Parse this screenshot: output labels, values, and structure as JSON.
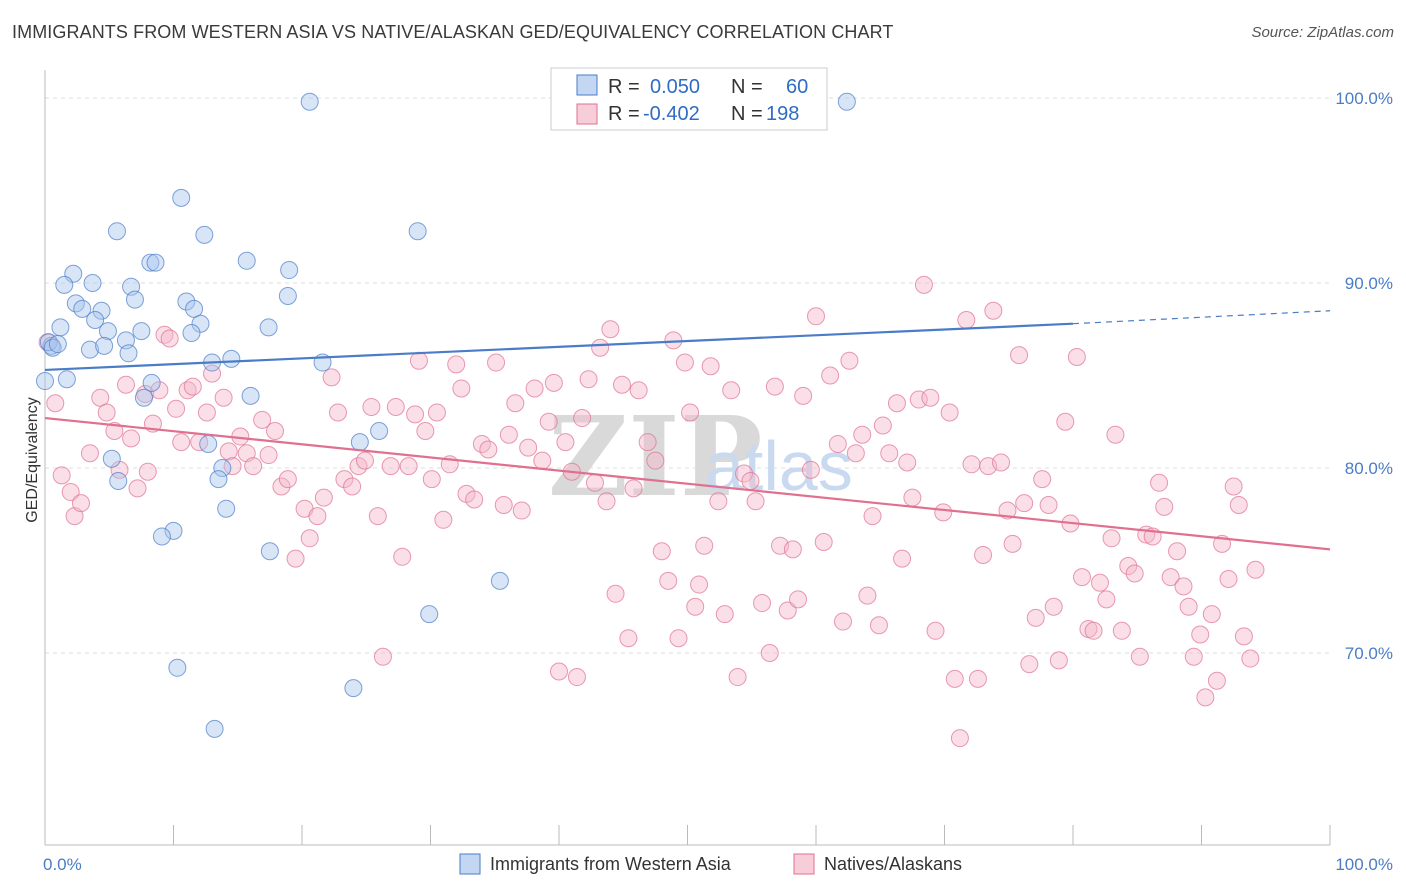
{
  "title": "IMMIGRANTS FROM WESTERN ASIA VS NATIVE/ALASKAN GED/EQUIVALENCY CORRELATION CHART",
  "source": "Source: ZipAtlas.com",
  "watermark": {
    "zip": "ZIP",
    "atlas": "atlas"
  },
  "colors": {
    "blue": "#4a7cc7",
    "blue_fill": "#a9c6ee",
    "pink": "#e0708f",
    "pink_fill": "#f5b8cb",
    "grid": "#dddddd"
  },
  "chart_data": {
    "type": "scatter",
    "ylabel": "GED/Equivalency",
    "xlim": [
      0,
      100
    ],
    "ylim": [
      60.5,
      102
    ],
    "y_ticks": [
      {
        "value": 100,
        "label": "100.0%"
      },
      {
        "value": 90,
        "label": "90.0%"
      },
      {
        "value": 80,
        "label": "80.0%"
      },
      {
        "value": 70,
        "label": "70.0%"
      }
    ],
    "x_tick_labels": [
      {
        "value": 0,
        "label": "0.0%"
      },
      {
        "value": 100,
        "label": "100.0%"
      }
    ],
    "x_minor_ticks": [
      0,
      10,
      20,
      30,
      40,
      50,
      60,
      70,
      80,
      90,
      100
    ],
    "legend": {
      "rows": [
        {
          "r_label": "R =",
          "r_value": "0.050",
          "n_label": "N =",
          "n_value": "60",
          "series": 0
        },
        {
          "r_label": "R =",
          "r_value": "-0.402",
          "n_label": "N =",
          "n_value": "198",
          "series": 1
        }
      ]
    },
    "series": [
      {
        "name": "Immigrants from Western Asia",
        "color": "#4a7cc7",
        "trend": {
          "x0": 0,
          "y0": 85.3,
          "x1": 80,
          "y1": 87.8,
          "dash_to_x": 100,
          "dash_to_y": 88.5
        },
        "points": [
          [
            20.6,
            99.8
          ],
          [
            62.4,
            99.8
          ],
          [
            10.6,
            94.6
          ],
          [
            5.6,
            92.8
          ],
          [
            12.4,
            92.6
          ],
          [
            29.0,
            92.8
          ],
          [
            8.2,
            91.1
          ],
          [
            8.6,
            91.1
          ],
          [
            15.7,
            91.2
          ],
          [
            19.0,
            90.7
          ],
          [
            2.2,
            90.5
          ],
          [
            1.5,
            89.9
          ],
          [
            3.7,
            90.0
          ],
          [
            6.7,
            89.8
          ],
          [
            11.0,
            89.0
          ],
          [
            18.9,
            89.3
          ],
          [
            2.4,
            88.9
          ],
          [
            2.9,
            88.6
          ],
          [
            4.4,
            88.5
          ],
          [
            7.0,
            89.1
          ],
          [
            11.6,
            88.6
          ],
          [
            3.9,
            88.0
          ],
          [
            12.1,
            87.8
          ],
          [
            1.2,
            87.6
          ],
          [
            4.9,
            87.4
          ],
          [
            7.5,
            87.4
          ],
          [
            11.4,
            87.3
          ],
          [
            17.4,
            87.6
          ],
          [
            6.3,
            86.9
          ],
          [
            0.5,
            86.6
          ],
          [
            3.5,
            86.4
          ],
          [
            4.6,
            86.6
          ],
          [
            6.5,
            86.2
          ],
          [
            13.0,
            85.7
          ],
          [
            14.5,
            85.9
          ],
          [
            21.6,
            85.7
          ],
          [
            0.0,
            84.7
          ],
          [
            1.7,
            84.8
          ],
          [
            8.3,
            84.6
          ],
          [
            7.7,
            83.8
          ],
          [
            16.0,
            83.9
          ],
          [
            26.0,
            82.0
          ],
          [
            12.7,
            81.3
          ],
          [
            24.5,
            81.4
          ],
          [
            5.2,
            80.5
          ],
          [
            13.8,
            80.0
          ],
          [
            5.7,
            79.3
          ],
          [
            13.5,
            79.4
          ],
          [
            14.1,
            77.8
          ],
          [
            10.0,
            76.6
          ],
          [
            9.1,
            76.3
          ],
          [
            17.5,
            75.5
          ],
          [
            35.4,
            73.9
          ],
          [
            29.9,
            72.1
          ],
          [
            10.3,
            69.2
          ],
          [
            24.0,
            68.1
          ],
          [
            13.2,
            65.9
          ],
          [
            0.3,
            86.8
          ],
          [
            0.6,
            86.5
          ],
          [
            1.0,
            86.7
          ]
        ]
      },
      {
        "name": "Natives/Alaskans",
        "color": "#e0708f",
        "trend": {
          "x0": 0,
          "y0": 82.7,
          "x1": 100,
          "y1": 75.6
        },
        "points": [
          [
            0.2,
            86.8
          ],
          [
            0.8,
            83.5
          ],
          [
            1.3,
            79.6
          ],
          [
            2.0,
            78.7
          ],
          [
            2.3,
            77.4
          ],
          [
            2.8,
            78.1
          ],
          [
            3.5,
            80.8
          ],
          [
            4.3,
            83.8
          ],
          [
            4.8,
            83.0
          ],
          [
            5.4,
            82.0
          ],
          [
            5.8,
            79.9
          ],
          [
            6.3,
            84.5
          ],
          [
            6.7,
            81.6
          ],
          [
            7.2,
            78.9
          ],
          [
            7.8,
            84.0
          ],
          [
            8.0,
            79.8
          ],
          [
            8.4,
            82.4
          ],
          [
            8.9,
            84.2
          ],
          [
            9.3,
            87.2
          ],
          [
            9.7,
            87.0
          ],
          [
            10.2,
            83.2
          ],
          [
            10.6,
            81.4
          ],
          [
            11.1,
            84.2
          ],
          [
            11.5,
            84.4
          ],
          [
            12.0,
            81.4
          ],
          [
            12.6,
            83.0
          ],
          [
            13.0,
            85.1
          ],
          [
            13.9,
            83.8
          ],
          [
            14.3,
            80.9
          ],
          [
            14.6,
            80.1
          ],
          [
            15.2,
            81.7
          ],
          [
            15.7,
            80.8
          ],
          [
            16.2,
            80.1
          ],
          [
            16.9,
            82.6
          ],
          [
            17.4,
            80.7
          ],
          [
            17.9,
            82.0
          ],
          [
            18.4,
            79.0
          ],
          [
            18.9,
            79.4
          ],
          [
            19.5,
            75.1
          ],
          [
            20.2,
            77.8
          ],
          [
            20.6,
            76.2
          ],
          [
            21.2,
            77.4
          ],
          [
            21.7,
            78.4
          ],
          [
            22.3,
            84.9
          ],
          [
            22.8,
            83.0
          ],
          [
            23.3,
            79.4
          ],
          [
            23.9,
            79.0
          ],
          [
            24.4,
            80.1
          ],
          [
            24.9,
            80.4
          ],
          [
            25.4,
            83.3
          ],
          [
            25.9,
            77.4
          ],
          [
            26.3,
            69.8
          ],
          [
            26.9,
            80.1
          ],
          [
            27.3,
            83.3
          ],
          [
            27.8,
            75.2
          ],
          [
            28.3,
            80.1
          ],
          [
            28.8,
            82.9
          ],
          [
            29.1,
            85.8
          ],
          [
            29.6,
            82.0
          ],
          [
            30.1,
            79.4
          ],
          [
            30.5,
            83.0
          ],
          [
            31.0,
            77.2
          ],
          [
            31.5,
            80.2
          ],
          [
            32.0,
            85.6
          ],
          [
            32.4,
            84.3
          ],
          [
            32.8,
            78.6
          ],
          [
            33.4,
            78.3
          ],
          [
            34.0,
            81.3
          ],
          [
            34.5,
            81.0
          ],
          [
            35.1,
            85.7
          ],
          [
            35.7,
            78.0
          ],
          [
            36.1,
            81.8
          ],
          [
            36.6,
            83.5
          ],
          [
            37.1,
            77.7
          ],
          [
            37.6,
            81.1
          ],
          [
            38.1,
            84.3
          ],
          [
            38.7,
            80.4
          ],
          [
            39.2,
            82.5
          ],
          [
            39.6,
            84.6
          ],
          [
            40.0,
            69.0
          ],
          [
            40.5,
            81.4
          ],
          [
            41.0,
            79.8
          ],
          [
            41.4,
            68.7
          ],
          [
            41.8,
            82.7
          ],
          [
            42.3,
            84.8
          ],
          [
            42.8,
            79.2
          ],
          [
            43.2,
            86.5
          ],
          [
            43.7,
            78.2
          ],
          [
            44.0,
            87.5
          ],
          [
            44.4,
            73.2
          ],
          [
            44.9,
            84.5
          ],
          [
            45.4,
            70.8
          ],
          [
            45.8,
            78.9
          ],
          [
            46.2,
            84.2
          ],
          [
            46.9,
            81.4
          ],
          [
            47.5,
            80.4
          ],
          [
            48.0,
            75.5
          ],
          [
            48.5,
            73.9
          ],
          [
            48.9,
            86.9
          ],
          [
            49.3,
            70.8
          ],
          [
            49.8,
            85.7
          ],
          [
            50.2,
            83.0
          ],
          [
            50.6,
            72.5
          ],
          [
            50.9,
            73.7
          ],
          [
            51.3,
            75.8
          ],
          [
            51.8,
            85.5
          ],
          [
            52.4,
            78.2
          ],
          [
            52.9,
            72.1
          ],
          [
            53.4,
            84.2
          ],
          [
            53.9,
            68.7
          ],
          [
            54.4,
            79.7
          ],
          [
            54.9,
            79.3
          ],
          [
            55.3,
            78.2
          ],
          [
            55.8,
            72.7
          ],
          [
            56.4,
            70.0
          ],
          [
            56.8,
            84.4
          ],
          [
            57.2,
            75.8
          ],
          [
            57.8,
            72.3
          ],
          [
            58.2,
            75.6
          ],
          [
            58.6,
            72.9
          ],
          [
            59.0,
            83.9
          ],
          [
            59.6,
            79.9
          ],
          [
            60.0,
            88.2
          ],
          [
            60.6,
            76.0
          ],
          [
            61.1,
            85.0
          ],
          [
            61.7,
            81.3
          ],
          [
            62.1,
            71.7
          ],
          [
            62.6,
            85.8
          ],
          [
            63.1,
            80.8
          ],
          [
            63.6,
            81.8
          ],
          [
            64.0,
            73.1
          ],
          [
            64.4,
            77.4
          ],
          [
            64.9,
            71.5
          ],
          [
            65.2,
            82.3
          ],
          [
            65.7,
            80.8
          ],
          [
            66.3,
            83.5
          ],
          [
            66.7,
            75.1
          ],
          [
            67.1,
            80.3
          ],
          [
            67.5,
            78.4
          ],
          [
            68.0,
            83.7
          ],
          [
            68.4,
            89.9
          ],
          [
            68.9,
            83.8
          ],
          [
            69.3,
            71.2
          ],
          [
            69.9,
            77.6
          ],
          [
            70.4,
            83.0
          ],
          [
            70.8,
            68.6
          ],
          [
            71.2,
            65.4
          ],
          [
            71.7,
            88.0
          ],
          [
            72.1,
            80.2
          ],
          [
            72.6,
            68.6
          ],
          [
            73.0,
            75.3
          ],
          [
            73.4,
            80.1
          ],
          [
            73.8,
            88.5
          ],
          [
            74.4,
            80.3
          ],
          [
            74.9,
            77.7
          ],
          [
            75.3,
            75.9
          ],
          [
            75.8,
            86.1
          ],
          [
            76.2,
            78.1
          ],
          [
            76.6,
            69.4
          ],
          [
            77.1,
            71.9
          ],
          [
            77.6,
            79.4
          ],
          [
            78.1,
            78.0
          ],
          [
            78.5,
            72.5
          ],
          [
            78.9,
            69.6
          ],
          [
            79.4,
            82.5
          ],
          [
            79.8,
            77.0
          ],
          [
            80.3,
            86.0
          ],
          [
            80.7,
            74.1
          ],
          [
            81.2,
            71.3
          ],
          [
            81.6,
            71.2
          ],
          [
            82.1,
            73.8
          ],
          [
            82.6,
            72.9
          ],
          [
            83.0,
            76.2
          ],
          [
            83.3,
            81.8
          ],
          [
            83.8,
            71.2
          ],
          [
            84.3,
            74.7
          ],
          [
            84.8,
            74.3
          ],
          [
            85.2,
            69.8
          ],
          [
            85.7,
            76.4
          ],
          [
            86.2,
            76.3
          ],
          [
            86.7,
            79.2
          ],
          [
            87.1,
            77.9
          ],
          [
            87.6,
            74.1
          ],
          [
            88.1,
            75.5
          ],
          [
            88.6,
            73.6
          ],
          [
            89.0,
            72.5
          ],
          [
            89.4,
            69.8
          ],
          [
            89.9,
            71.0
          ],
          [
            90.3,
            67.6
          ],
          [
            90.8,
            72.1
          ],
          [
            91.2,
            68.5
          ],
          [
            91.6,
            75.9
          ],
          [
            92.1,
            74.0
          ],
          [
            92.5,
            79.0
          ],
          [
            92.9,
            78.0
          ],
          [
            93.3,
            70.9
          ],
          [
            93.8,
            69.7
          ],
          [
            94.2,
            74.5
          ]
        ]
      }
    ]
  },
  "bottom_legend": [
    {
      "label": "Immigrants from Western Asia",
      "series": 0
    },
    {
      "label": "Natives/Alaskans",
      "series": 1
    }
  ]
}
